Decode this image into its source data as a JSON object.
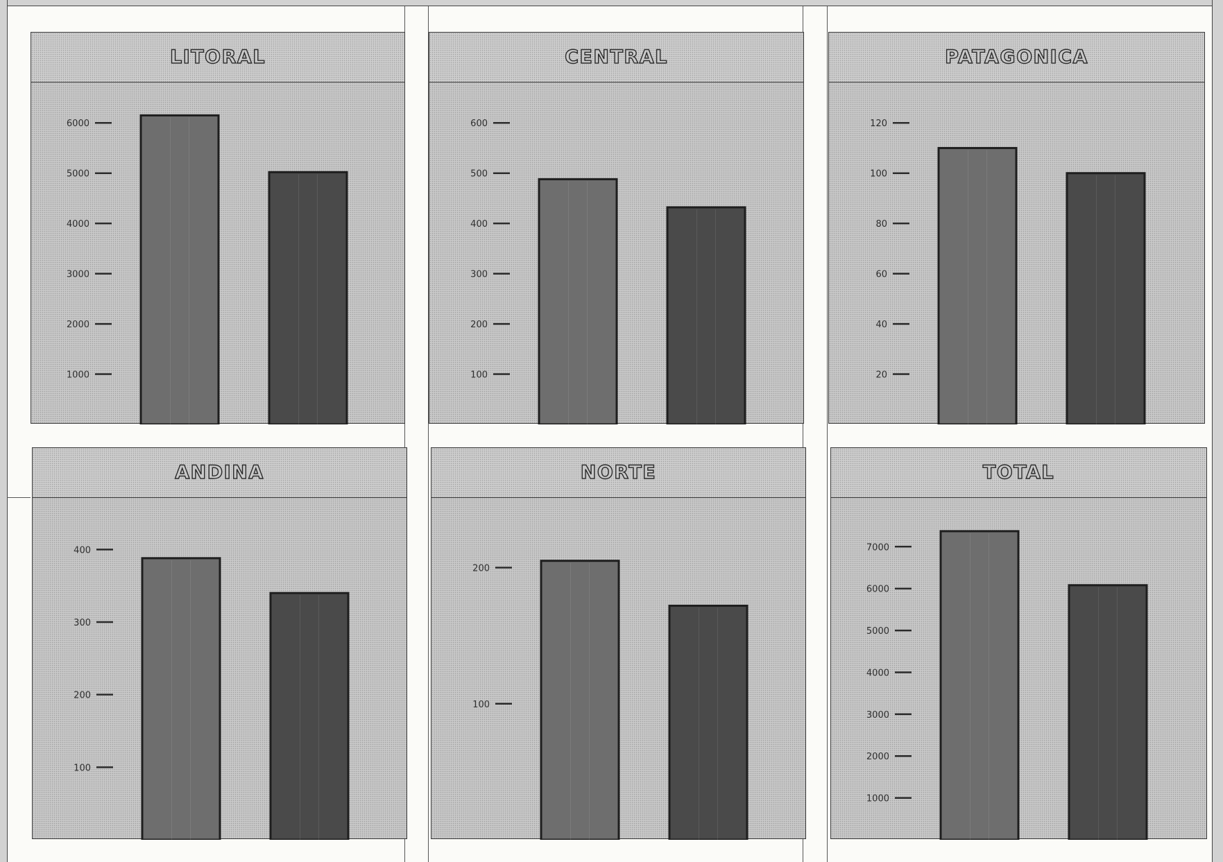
{
  "chart_data": [
    {
      "type": "bar",
      "title": "LITORAL",
      "categories": [
        "",
        ""
      ],
      "values": [
        6150,
        5020
      ],
      "ylim": [
        0,
        6500
      ],
      "yticks": [
        1000,
        2000,
        3000,
        4000,
        5000,
        6000
      ],
      "bar_colors": [
        "#6e6e6e",
        "#4a4a4a"
      ],
      "grid": false
    },
    {
      "type": "bar",
      "title": "CENTRAL",
      "categories": [
        "",
        ""
      ],
      "values": [
        488,
        432
      ],
      "ylim": [
        0,
        650
      ],
      "yticks": [
        100,
        200,
        300,
        400,
        500,
        600
      ],
      "bar_colors": [
        "#6e6e6e",
        "#4a4a4a"
      ],
      "grid": false
    },
    {
      "type": "bar",
      "title": "PATAGONICA",
      "categories": [
        "",
        ""
      ],
      "values": [
        110,
        100
      ],
      "ylim": [
        0,
        130
      ],
      "yticks": [
        20,
        40,
        60,
        80,
        100,
        120
      ],
      "bar_colors": [
        "#6e6e6e",
        "#4a4a4a"
      ],
      "grid": false
    },
    {
      "type": "bar",
      "title": "ANDINA",
      "categories": [
        "",
        ""
      ],
      "values": [
        388,
        340
      ],
      "ylim": [
        0,
        450
      ],
      "yticks": [
        100,
        200,
        300,
        400
      ],
      "bar_colors": [
        "#6e6e6e",
        "#4a4a4a"
      ],
      "grid": false
    },
    {
      "type": "bar",
      "title": "NORTE",
      "categories": [
        "",
        ""
      ],
      "values": [
        205,
        172
      ],
      "ylim": [
        0,
        240
      ],
      "yticks": [
        100,
        200
      ],
      "bar_colors": [
        "#6e6e6e",
        "#4a4a4a"
      ],
      "grid": false
    },
    {
      "type": "bar",
      "title": "TOTAL",
      "categories": [
        "",
        ""
      ],
      "values": [
        7370,
        6080
      ],
      "ylim": [
        0,
        7800
      ],
      "yticks": [
        1000,
        2000,
        3000,
        4000,
        5000,
        6000,
        7000
      ],
      "bar_colors": [
        "#6e6e6e",
        "#4a4a4a"
      ],
      "grid": false
    }
  ]
}
